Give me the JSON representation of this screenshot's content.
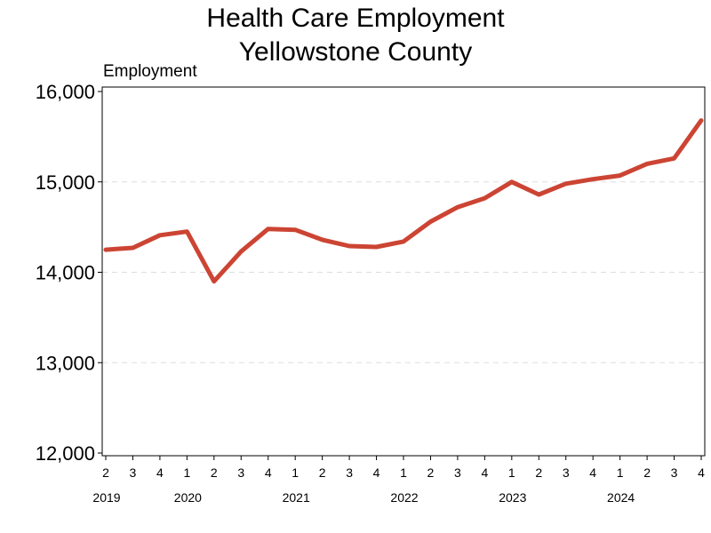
{
  "chart_data": {
    "type": "line",
    "title": [
      "Health Care Employment",
      "Yellowstone County"
    ],
    "ylabel": "Employment",
    "ylim": [
      12000,
      16000
    ],
    "yticks": [
      12000,
      13000,
      14000,
      15000,
      16000
    ],
    "ytick_labels": [
      "12,000",
      "13,000",
      "14,000",
      "15,000",
      "16,000"
    ],
    "grid": "horizontal dashed",
    "x": [
      "2019 Q2",
      "2019 Q3",
      "2019 Q4",
      "2020 Q1",
      "2020 Q2",
      "2020 Q3",
      "2020 Q4",
      "2021 Q1",
      "2021 Q2",
      "2021 Q3",
      "2021 Q4",
      "2022 Q1",
      "2022 Q2",
      "2022 Q3",
      "2022 Q4",
      "2023 Q1",
      "2023 Q2",
      "2023 Q3",
      "2023 Q4",
      "2024 Q1",
      "2024 Q2",
      "2024 Q3",
      "2024 Q4"
    ],
    "xtick_labels": [
      "2",
      "3",
      "4",
      "1",
      "2",
      "3",
      "4",
      "1",
      "2",
      "3",
      "4",
      "1",
      "2",
      "3",
      "4",
      "1",
      "2",
      "3",
      "4",
      "1",
      "2",
      "3",
      "4"
    ],
    "year_labels": [
      {
        "label": "2019",
        "index": 0
      },
      {
        "label": "2020",
        "index": 3
      },
      {
        "label": "2021",
        "index": 7
      },
      {
        "label": "2022",
        "index": 11
      },
      {
        "label": "2023",
        "index": 15
      },
      {
        "label": "2024",
        "index": 19
      }
    ],
    "series": [
      {
        "values": [
          14250,
          14270,
          14410,
          14450,
          13900,
          14230,
          14480,
          14470,
          14360,
          14290,
          14280,
          14340,
          14560,
          14720,
          14820,
          15000,
          14860,
          14980,
          15030,
          15070,
          15200,
          15260,
          15680
        ]
      }
    ],
    "colors": {
      "line": "#cc4433",
      "grid": "#dddddd",
      "axis": "#000000"
    }
  }
}
